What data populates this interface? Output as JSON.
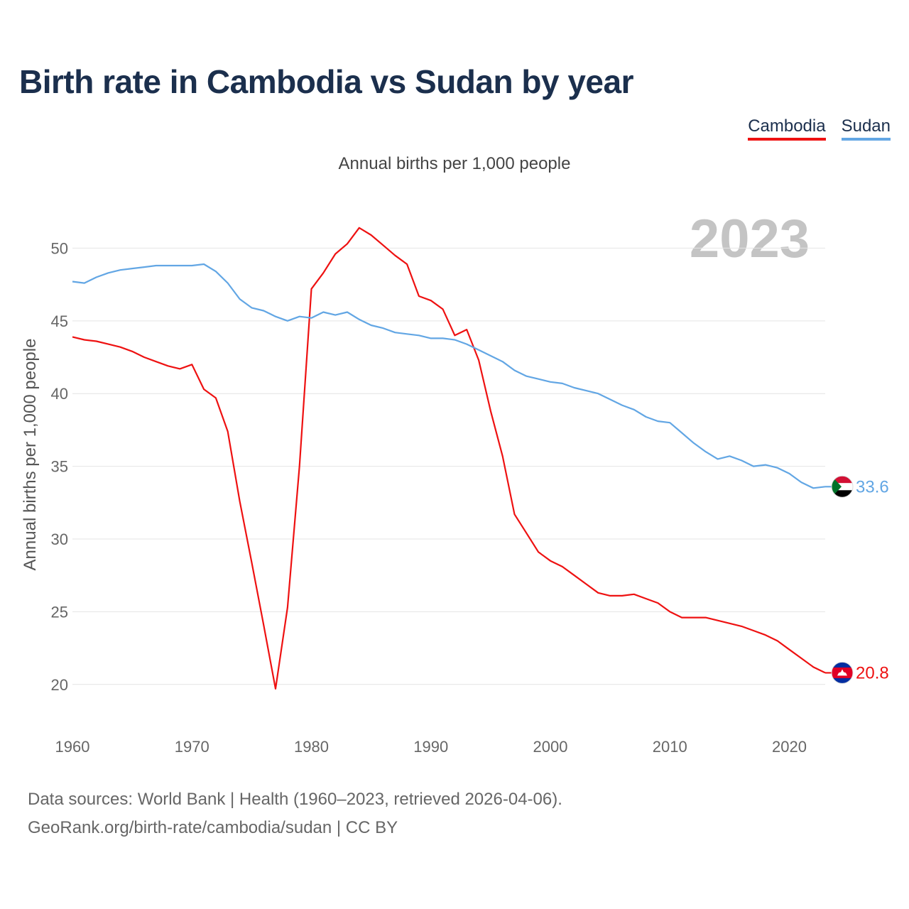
{
  "title": "Birth rate in Cambodia vs Sudan by year",
  "legend": {
    "cambodia": "Cambodia",
    "sudan": "Sudan"
  },
  "subtitle": "Annual births per 1,000 people",
  "source_line1": "Data sources: World Bank | Health (1960–2023, retrieved 2026-04-06).",
  "source_line2": "GeoRank.org/birth-rate/cambodia/sudan | CC BY",
  "colors": {
    "cambodia": "#ee1111",
    "sudan": "#62a6e4",
    "grid": "#e4e4e4",
    "title": "#1b2f4d"
  },
  "chart_data": {
    "type": "line",
    "title": "Birth rate in Cambodia vs Sudan by year",
    "xlabel": "",
    "ylabel": "Annual births per 1,000 people",
    "xlim": [
      1960,
      2023
    ],
    "ylim": [
      17.5,
      53
    ],
    "x_ticks": [
      1960,
      1970,
      1980,
      1990,
      2000,
      2010,
      2020
    ],
    "y_ticks": [
      20,
      25,
      30,
      35,
      40,
      45,
      50
    ],
    "highlight_year": "2023",
    "x": [
      1960,
      1961,
      1962,
      1963,
      1964,
      1965,
      1966,
      1967,
      1968,
      1969,
      1970,
      1971,
      1972,
      1973,
      1974,
      1975,
      1976,
      1977,
      1978,
      1979,
      1980,
      1981,
      1982,
      1983,
      1984,
      1985,
      1986,
      1987,
      1988,
      1989,
      1990,
      1991,
      1992,
      1993,
      1994,
      1995,
      1996,
      1997,
      1998,
      1999,
      2000,
      2001,
      2002,
      2003,
      2004,
      2005,
      2006,
      2007,
      2008,
      2009,
      2010,
      2011,
      2012,
      2013,
      2014,
      2015,
      2016,
      2017,
      2018,
      2019,
      2020,
      2021,
      2022,
      2023
    ],
    "series": [
      {
        "name": "Cambodia",
        "end_label": "20.8",
        "values": [
          43.9,
          43.7,
          43.6,
          43.4,
          43.2,
          42.9,
          42.5,
          42.2,
          41.9,
          41.7,
          42.0,
          40.3,
          39.7,
          37.4,
          32.6,
          28.4,
          24.1,
          19.7,
          25.3,
          35.0,
          47.2,
          48.3,
          49.6,
          50.3,
          51.4,
          50.9,
          50.2,
          49.5,
          48.9,
          46.7,
          46.4,
          45.8,
          44.0,
          44.4,
          42.3,
          38.8,
          35.7,
          31.7,
          30.4,
          29.1,
          28.5,
          28.1,
          27.5,
          26.9,
          26.3,
          26.1,
          26.1,
          26.2,
          25.9,
          25.6,
          25.0,
          24.6,
          24.6,
          24.6,
          24.4,
          24.2,
          24.0,
          23.7,
          23.4,
          23.0,
          22.4,
          21.8,
          21.2,
          20.8
        ]
      },
      {
        "name": "Sudan",
        "end_label": "33.6",
        "values": [
          47.7,
          47.6,
          48.0,
          48.3,
          48.5,
          48.6,
          48.7,
          48.8,
          48.8,
          48.8,
          48.8,
          48.9,
          48.4,
          47.6,
          46.5,
          45.9,
          45.7,
          45.3,
          45.0,
          45.3,
          45.2,
          45.6,
          45.4,
          45.6,
          45.1,
          44.7,
          44.5,
          44.2,
          44.1,
          44.0,
          43.8,
          43.8,
          43.7,
          43.4,
          43.0,
          42.6,
          42.2,
          41.6,
          41.2,
          41.0,
          40.8,
          40.7,
          40.4,
          40.2,
          40.0,
          39.6,
          39.2,
          38.9,
          38.4,
          38.1,
          38.0,
          37.3,
          36.6,
          36.0,
          35.5,
          35.7,
          35.4,
          35.0,
          35.1,
          34.9,
          34.5,
          33.9,
          33.5,
          33.6
        ]
      }
    ]
  }
}
